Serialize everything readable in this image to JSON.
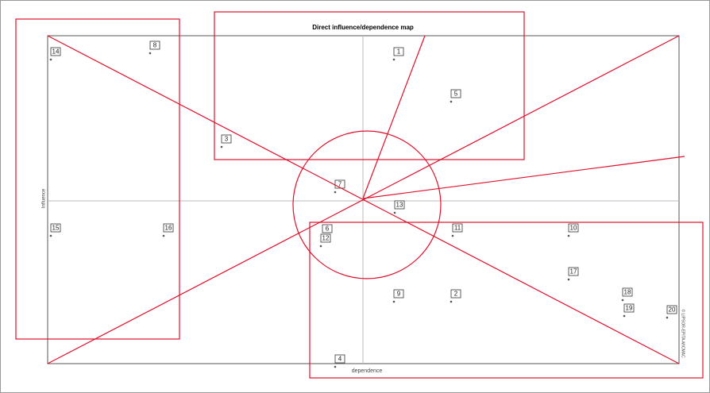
{
  "title": "Direct influence/dependence map",
  "x_axis_label": "dependence",
  "y_axis_label": "Influence",
  "side_text": "© LIPSOR-EPITA-MICMAC",
  "nodes": [
    {
      "label": "14"
    },
    {
      "label": "8"
    },
    {
      "label": "1"
    },
    {
      "label": "5"
    },
    {
      "label": "3"
    },
    {
      "label": "7"
    },
    {
      "label": "13"
    },
    {
      "label": "15"
    },
    {
      "label": "16"
    },
    {
      "label": "6"
    },
    {
      "label": "12"
    },
    {
      "label": "11"
    },
    {
      "label": "10"
    },
    {
      "label": "17"
    },
    {
      "label": "9"
    },
    {
      "label": "2"
    },
    {
      "label": "18"
    },
    {
      "label": "19"
    },
    {
      "label": "20"
    },
    {
      "label": "4"
    }
  ]
}
